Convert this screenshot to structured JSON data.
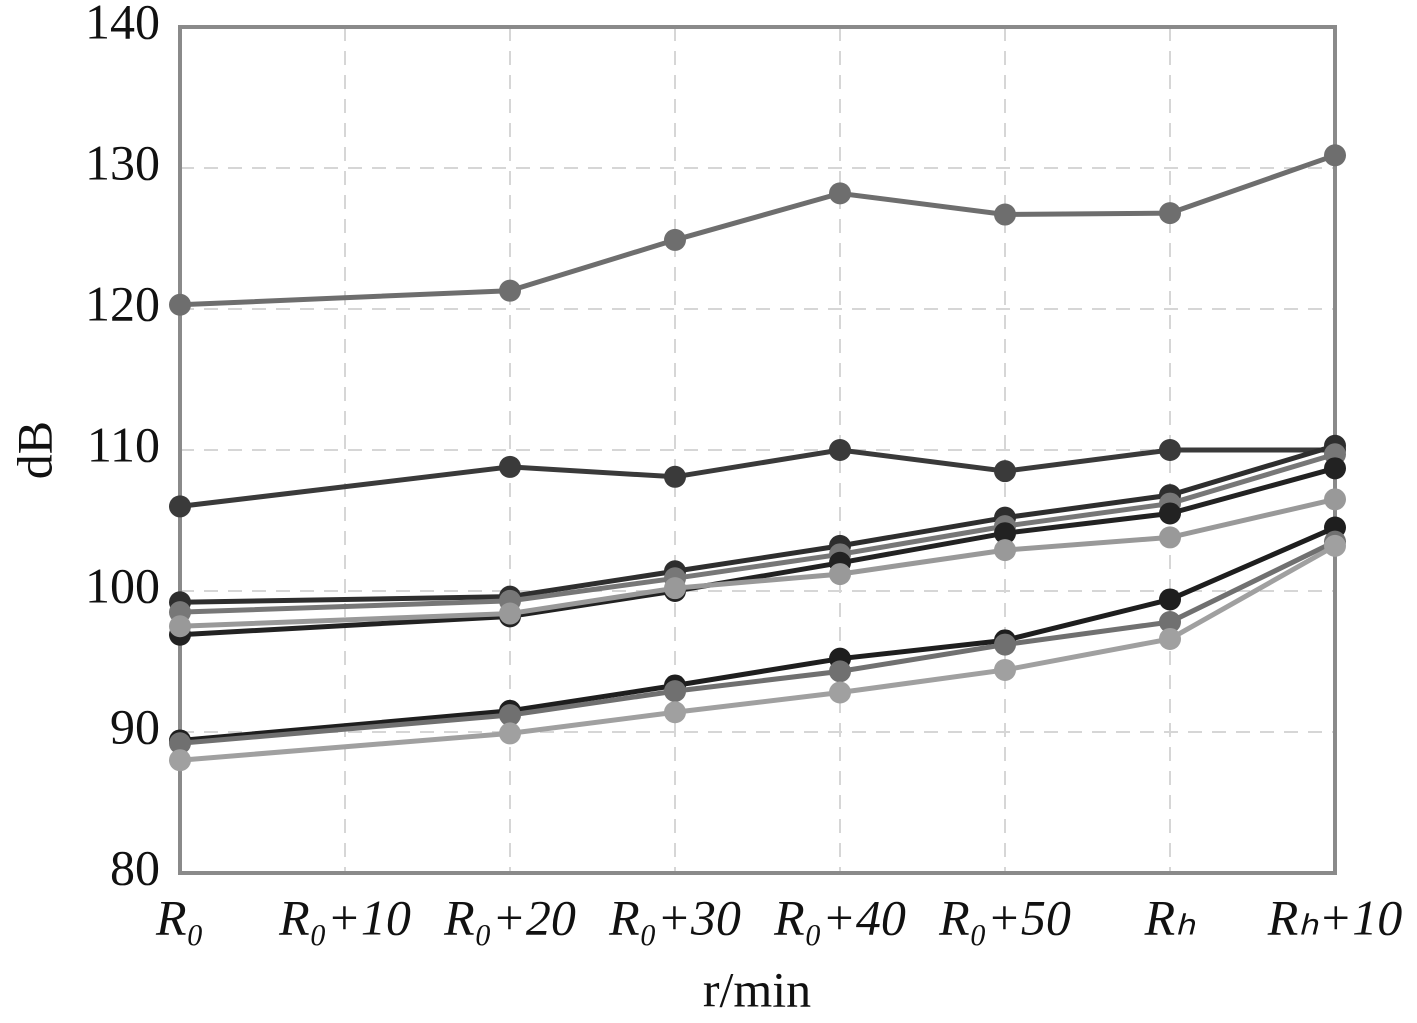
{
  "chart_data": {
    "type": "line",
    "xlabel": "r/min",
    "ylabel": "dB",
    "xlim": [
      0,
      70
    ],
    "ylim": [
      80,
      140
    ],
    "xticks": [
      {
        "value": 0,
        "label": "R₀"
      },
      {
        "value": 10,
        "label": "R₀+10"
      },
      {
        "value": 20,
        "label": "R₀+20"
      },
      {
        "value": 30,
        "label": "R₀+30"
      },
      {
        "value": 40,
        "label": "R₀+40"
      },
      {
        "value": 50,
        "label": "R₀+50"
      },
      {
        "value": 60,
        "label": "Rₕ"
      },
      {
        "value": 70,
        "label": "Rₕ+10"
      }
    ],
    "yticks": [
      80,
      90,
      100,
      110,
      120,
      130,
      140
    ],
    "grid": true,
    "x": [
      0,
      20,
      30,
      40,
      50,
      60,
      70
    ],
    "series": [
      {
        "color": "#6e6e6e",
        "values": [
          120.3,
          121.3,
          124.9,
          128.2,
          126.7,
          126.8,
          130.9
        ]
      },
      {
        "color": "#3a3a3a",
        "values": [
          106,
          108.8,
          108.1,
          110,
          108.5,
          110,
          110
        ]
      },
      {
        "color": "#2e2e2e",
        "values": [
          99.2,
          99.6,
          101.4,
          103.2,
          105.2,
          106.8,
          110.3
        ]
      },
      {
        "color": "#777777",
        "values": [
          98.5,
          99.3,
          100.9,
          102.6,
          104.6,
          106.2,
          109.7
        ]
      },
      {
        "color": "#222222",
        "values": [
          96.9,
          98.2,
          100,
          102,
          104.1,
          105.5,
          108.7
        ]
      },
      {
        "color": "#999999",
        "values": [
          97.5,
          98.4,
          100.2,
          101.2,
          102.9,
          103.8,
          106.5
        ]
      },
      {
        "color": "#1e1e1e",
        "values": [
          89.4,
          91.5,
          93.3,
          95.2,
          96.5,
          99.4,
          104.5
        ]
      },
      {
        "color": "#707070",
        "values": [
          89.2,
          91.2,
          92.9,
          94.3,
          96.2,
          97.8,
          103.5
        ]
      },
      {
        "color": "#a0a0a0",
        "values": [
          88,
          89.9,
          91.4,
          92.8,
          94.4,
          96.6,
          103.2
        ]
      }
    ]
  }
}
